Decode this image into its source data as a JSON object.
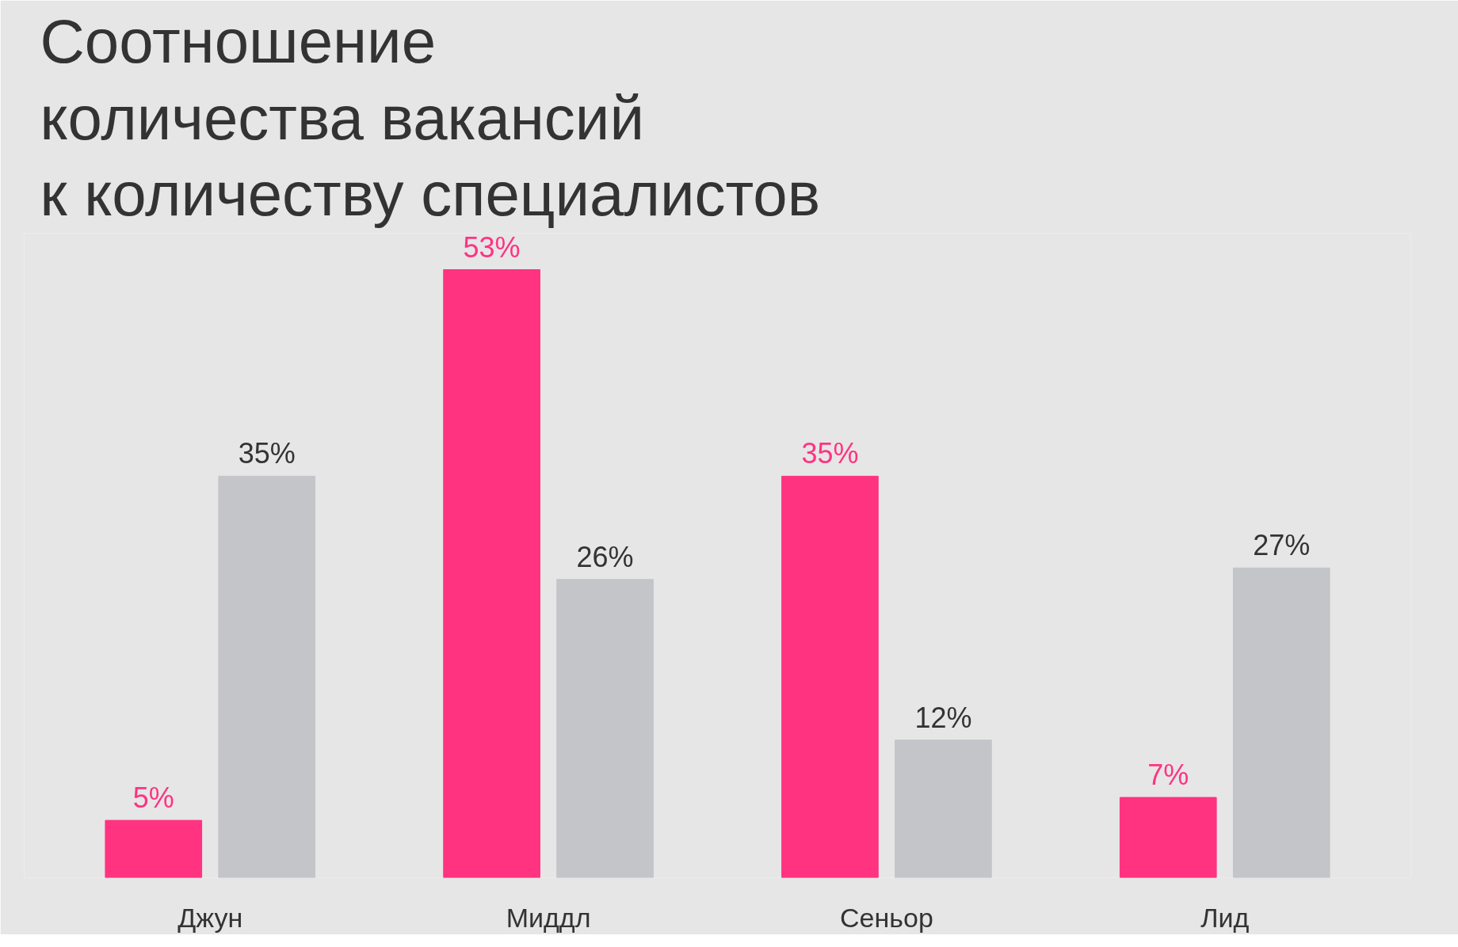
{
  "chart_data": {
    "type": "bar",
    "title": "Соотношение\nколичества вакансий\nк количеству специалистов",
    "categories": [
      "Джун",
      "Миддл",
      "Сеньор",
      "Лид"
    ],
    "series": [
      {
        "color": "#ff3380",
        "values": [
          5,
          53,
          35,
          7
        ],
        "value_labels": [
          "5%",
          "53%",
          "35%",
          "7%"
        ]
      },
      {
        "color": "#c4c5c9",
        "values": [
          35,
          26,
          12,
          27
        ],
        "value_labels": [
          "35%",
          "26%",
          "12%",
          "27%"
        ]
      }
    ]
  }
}
